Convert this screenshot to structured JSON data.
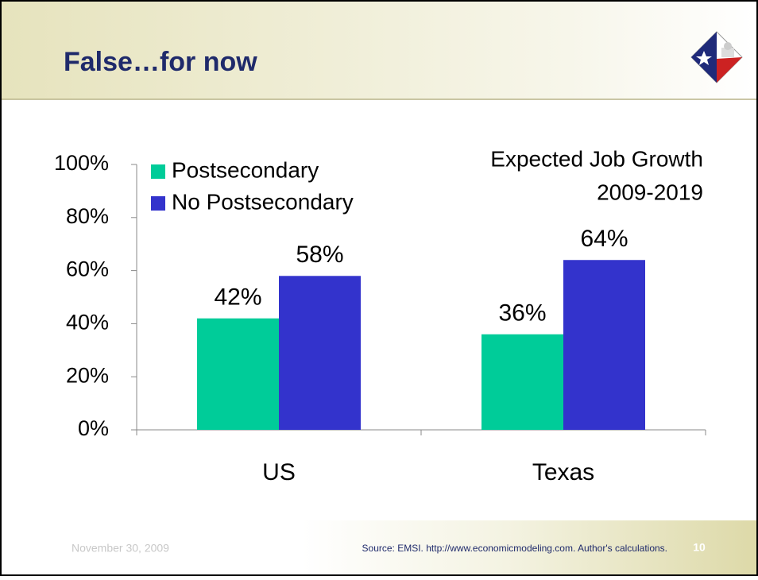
{
  "chart_data": {
    "type": "bar",
    "title": "False…for now",
    "annotation": [
      "Expected Job Growth",
      "2009-2019"
    ],
    "categories": [
      "US",
      "Texas"
    ],
    "series": [
      {
        "name": "Postsecondary",
        "color": "#00cc99",
        "values": [
          42,
          36
        ],
        "value_labels": [
          "42%",
          "36%"
        ]
      },
      {
        "name": "No Postsecondary",
        "color": "#3333cc",
        "values": [
          58,
          64
        ],
        "value_labels": [
          "58%",
          "64%"
        ]
      }
    ],
    "ylim": [
      0,
      100
    ],
    "yticks": [
      {
        "value": 0,
        "label": "0%"
      },
      {
        "value": 20,
        "label": "20%"
      },
      {
        "value": 40,
        "label": "40%"
      },
      {
        "value": 60,
        "label": "60%"
      },
      {
        "value": 80,
        "label": "80%"
      },
      {
        "value": 100,
        "label": "100%"
      }
    ],
    "legend": "top-left",
    "grid": false
  },
  "footer": {
    "date": "November 30, 2009",
    "source": "Source: EMSI. http://www.economicmodeling.com. Author's calculations.",
    "page_number": "10"
  }
}
